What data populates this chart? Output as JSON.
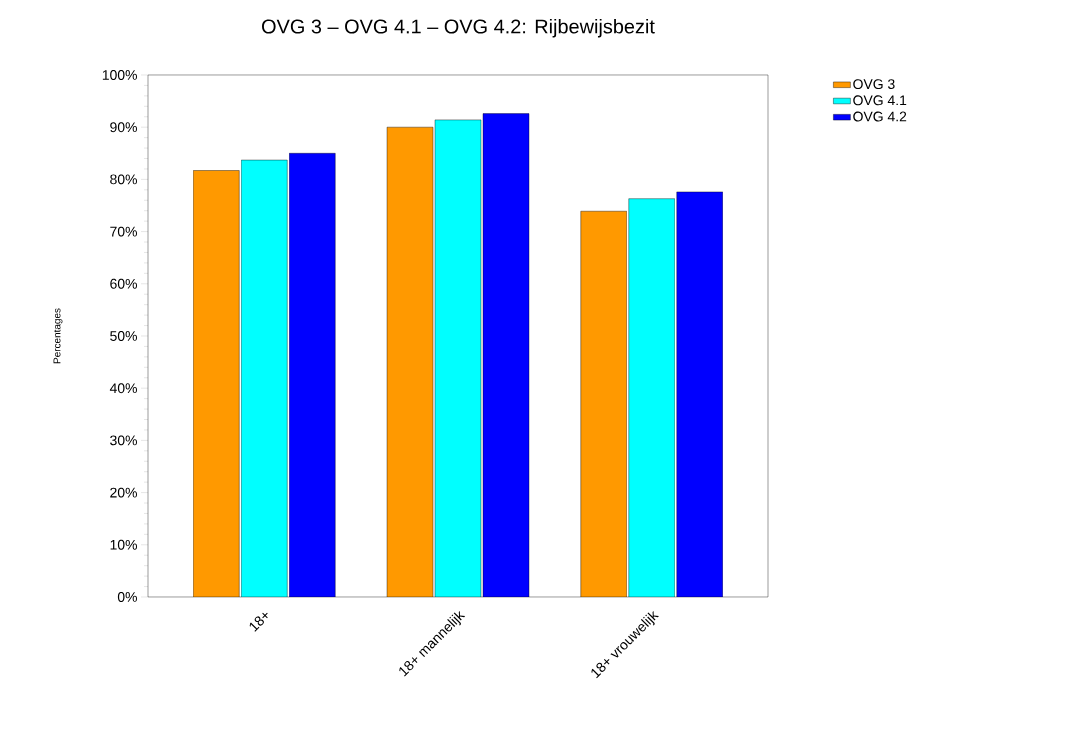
{
  "chart_data": {
    "type": "bar",
    "title": "OVG 3  –  OVG 4.1  –  OVG 4.2: Rijbewijsbezit",
    "ylabel": "Percentages",
    "categories": [
      "18+",
      "18+  mannelijk",
      "18+  vrouwelijk"
    ],
    "series": [
      {
        "name": "OVG 3",
        "color": "#ff9900",
        "values": [
          81.7,
          90.0,
          73.9
        ]
      },
      {
        "name": "OVG 4.1",
        "color": "#00ffff",
        "values": [
          83.7,
          91.4,
          76.3
        ]
      },
      {
        "name": "OVG 4.2",
        "color": "#0000ff",
        "values": [
          85.0,
          92.6,
          77.6
        ]
      }
    ],
    "ylim": [
      0,
      100
    ],
    "yticks": [
      {
        "value": 0,
        "label": "0%"
      },
      {
        "value": 10,
        "label": "10%"
      },
      {
        "value": 20,
        "label": "20%"
      },
      {
        "value": 30,
        "label": "30%"
      },
      {
        "value": 40,
        "label": "40%"
      },
      {
        "value": 50,
        "label": "50%"
      },
      {
        "value": 60,
        "label": "60%"
      },
      {
        "value": 70,
        "label": "70%"
      },
      {
        "value": 80,
        "label": "80%"
      },
      {
        "value": 90,
        "label": "90%"
      },
      {
        "value": 100,
        "label": "100%"
      }
    ],
    "grid": false,
    "legend": "top right"
  }
}
